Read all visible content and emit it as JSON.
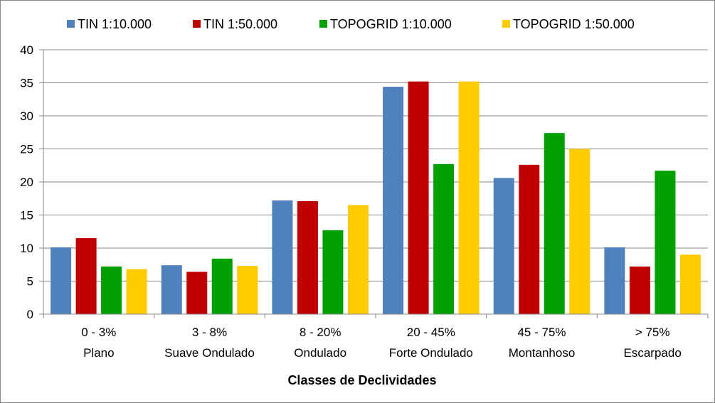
{
  "chart_data": {
    "type": "bar",
    "title": "",
    "xlabel": "Classes de Declividades",
    "ylabel": "",
    "ylim": [
      0,
      40
    ],
    "yticks": [
      0,
      5,
      10,
      15,
      20,
      25,
      30,
      35,
      40
    ],
    "grid": true,
    "legend_position": "top",
    "categories": [
      {
        "line1": "0 - 3%",
        "line2": "Plano"
      },
      {
        "line1": "3 - 8%",
        "line2": "Suave Ondulado"
      },
      {
        "line1": "8 - 20%",
        "line2": "Ondulado"
      },
      {
        "line1": "20 - 45%",
        "line2": "Forte Ondulado"
      },
      {
        "line1": "45 - 75%",
        "line2": "Montanhoso"
      },
      {
        "line1": "> 75%",
        "line2": "Escarpado"
      }
    ],
    "series": [
      {
        "name": "TIN 1:10.000",
        "color": "#4F81BD",
        "values": [
          10.1,
          7.4,
          17.2,
          34.4,
          20.6,
          10.1
        ]
      },
      {
        "name": "TIN 1:50.000",
        "color": "#C00000",
        "values": [
          11.5,
          6.4,
          17.1,
          35.2,
          22.6,
          7.2
        ]
      },
      {
        "name": "TOPOGRID 1:10.000",
        "color": "#00A000",
        "values": [
          7.2,
          8.4,
          12.7,
          22.7,
          27.4,
          21.7
        ]
      },
      {
        "name": "TOPOGRID 1:50.000",
        "color": "#FFCC00",
        "values": [
          6.8,
          7.3,
          16.5,
          35.2,
          25.0,
          9.0
        ]
      }
    ]
  }
}
